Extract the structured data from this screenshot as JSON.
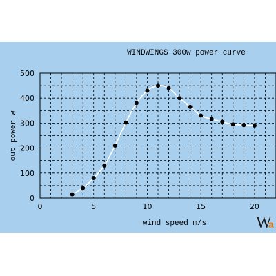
{
  "chart_data": {
    "type": "line",
    "title": "WINDWINGS 300w power curve",
    "xlabel": "wind speed m/s",
    "ylabel": "out power w",
    "xlim": [
      0,
      22
    ],
    "ylim": [
      0,
      500
    ],
    "x_ticks": [
      0,
      5,
      10,
      15,
      20
    ],
    "y_ticks": [
      0,
      100,
      200,
      300,
      400,
      500
    ],
    "grid": true,
    "series": [
      {
        "x": [
          3,
          4,
          5,
          6,
          7,
          8,
          9,
          10,
          11,
          12,
          13,
          14,
          15,
          16,
          17,
          18,
          19,
          20
        ],
        "values": [
          15,
          40,
          80,
          130,
          210,
          302,
          380,
          430,
          450,
          440,
          400,
          365,
          330,
          316,
          305,
          295,
          292,
          290
        ]
      }
    ]
  },
  "colors": {
    "background": "#a9cfee",
    "curve": "#ffffff",
    "points": "#000000",
    "watermark_accent": "#e07b1a"
  },
  "watermark": {
    "main": "W",
    "accent": "a"
  }
}
